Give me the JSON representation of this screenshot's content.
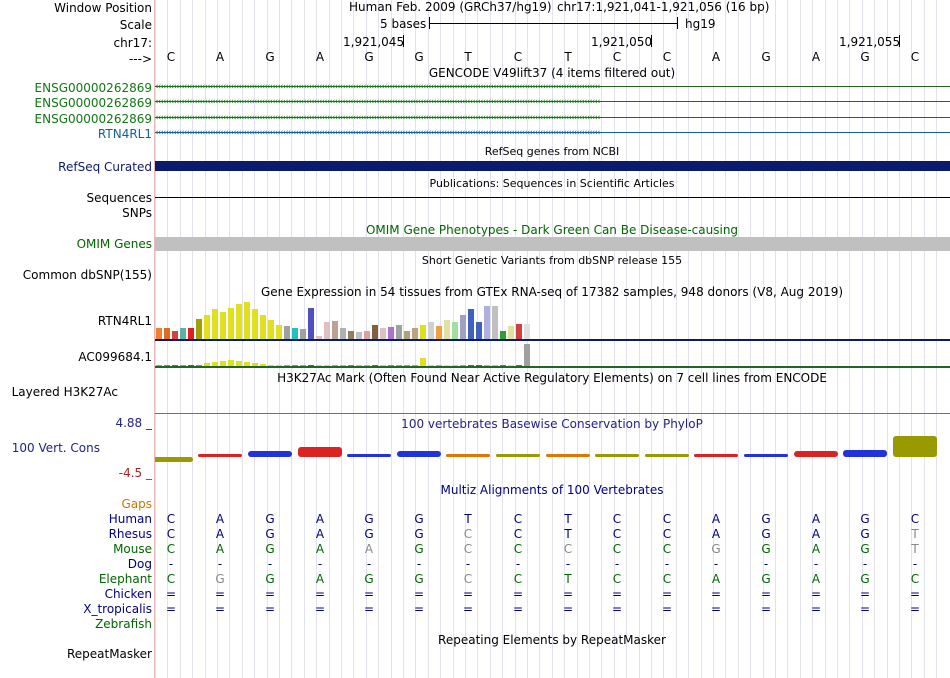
{
  "labels": {
    "window_position": "Window Position",
    "scale": "Scale",
    "chrom": "chr17:",
    "arrow": "--->",
    "gencode_tracks": [
      "ENSG00000262869",
      "ENSG00000262869",
      "ENSG00000262869",
      "RTN4RL1"
    ],
    "refseq": "RefSeq Curated",
    "sequences": "Sequences",
    "snps": "SNPs",
    "omim": "OMIM Genes",
    "dbsnp": "Common dbSNP(155)",
    "gtex_rtn": "RTN4RL1",
    "gtex_ac": "AC099684.1",
    "h3k27ac": "Layered H3K27Ac",
    "cons_max": "4.88 _",
    "cons": "100 Vert. Cons",
    "cons_min": "-4.5 _",
    "gaps": "Gaps",
    "species": [
      "Human",
      "Rhesus",
      "Mouse",
      "Dog",
      "Elephant",
      "Chicken",
      "X_tropicalis",
      "Zebrafish"
    ],
    "repeatmasker": "RepeatMasker"
  },
  "header": {
    "assembly": "Human Feb. 2009 (GRCh37/hg19)",
    "position": "chr17:1,921,041-1,921,056 (16 bp)",
    "scale_text": "5 bases",
    "scale_db": "hg19",
    "ticks": [
      "1,921,045",
      "1,921,050",
      "1,921,055"
    ]
  },
  "sequence": [
    "C",
    "A",
    "G",
    "A",
    "G",
    "G",
    "T",
    "C",
    "T",
    "C",
    "C",
    "A",
    "G",
    "A",
    "G",
    "C"
  ],
  "titles": {
    "gencode": "GENCODE V49lift37 (4 items filtered out)",
    "refseq": "RefSeq genes from NCBI",
    "publications": "Publications: Sequences in Scientific Articles",
    "omim": "OMIM Gene Phenotypes - Dark Green Can Be Disease-causing",
    "dbsnp": "Short Genetic Variants from dbSNP release 155",
    "gtex": "Gene Expression in 54 tissues from GTEx RNA-seq of 17382 samples, 948 donors (V8, Aug 2019)",
    "h3k27ac": "H3K27Ac Mark (Often Found Near Active Regulatory Elements) on 7 cell lines from ENCODE",
    "phylop": "100 vertebrates Basewise Conservation by PhyloP",
    "multiz": "Multiz Alignments of 100 Vertebrates",
    "repeatmasker": "Repeating Elements by RepeatMasker"
  },
  "alignment": {
    "Human": [
      "C",
      "A",
      "G",
      "A",
      "G",
      "G",
      "T",
      "C",
      "T",
      "C",
      "C",
      "A",
      "G",
      "A",
      "G",
      "C"
    ],
    "Rhesus": [
      "C",
      "A",
      "G",
      "A",
      "G",
      "G",
      "C",
      "C",
      "T",
      "C",
      "C",
      "A",
      "G",
      "A",
      "G",
      "T"
    ],
    "Mouse": [
      "C",
      "A",
      "G",
      "A",
      "A",
      "G",
      "C",
      "C",
      "C",
      "C",
      "C",
      "G",
      "G",
      "A",
      "G",
      "T"
    ],
    "Dog": [
      "-",
      "-",
      "-",
      "-",
      "-",
      "-",
      "-",
      "-",
      "-",
      "-",
      "-",
      "-",
      "-",
      "-",
      "-",
      "-"
    ],
    "Elephant": [
      "C",
      "G",
      "G",
      "A",
      "G",
      "G",
      "C",
      "C",
      "T",
      "C",
      "C",
      "A",
      "G",
      "A",
      "G",
      "C"
    ],
    "Chicken": [
      "=",
      "=",
      "=",
      "=",
      "=",
      "=",
      "=",
      "=",
      "=",
      "=",
      "=",
      "=",
      "=",
      "=",
      "=",
      "="
    ],
    "X_tropicalis": [
      "=",
      "=",
      "=",
      "=",
      "=",
      "=",
      "=",
      "=",
      "=",
      "=",
      "=",
      "=",
      "=",
      "=",
      "=",
      "="
    ],
    "Zebrafish": [
      "",
      "",
      "",
      "",
      "",
      "",
      "",
      "",
      "",
      "",
      "",
      "",
      "",
      "",
      "",
      ""
    ]
  },
  "phylop_scores": [
    -0.9,
    0.4,
    1.0,
    1.6,
    0.4,
    1.0,
    0.0,
    0.5,
    0.4,
    0.4,
    0.0,
    0.4,
    0.4,
    1.0,
    1.1,
    3.5
  ],
  "gtex_rtn4rl1_colors": [
    "#f08030",
    "#e06a20",
    "#d84040",
    "#60b0a0",
    "#e02020",
    "#a0a000",
    "#e0e020",
    "#e0e020",
    "#e0e020",
    "#e0e020",
    "#e0e020",
    "#e0e020",
    "#e0e020",
    "#e0e020",
    "#e0e020",
    "#e0e020",
    "#a0a0a0",
    "#20c0c0",
    "#a0a0a0",
    "#5050c0",
    "#e0c0c0",
    "#e0c0c0",
    "#c0a090",
    "#b0b0b0",
    "#908060",
    "#c0c0c0",
    "#e0a0a0",
    "#806040",
    "#e0c0c0",
    "#b070d0",
    "#a0a0a0",
    "#b0a080",
    "#c0a080",
    "#e0e020",
    "#d0d0d0",
    "#f0a040",
    "#e0e0a0",
    "#a0e0a0",
    "#a0a0c0",
    "#4060c0",
    "#4060c0",
    "#b0b0e0",
    "#c0c0c0",
    "#30a030",
    "#e0e0a0",
    "#d04040",
    "#e0e0e0"
  ],
  "gtex_rtn4rl1_values": [
    0.3,
    0.3,
    0.22,
    0.28,
    0.3,
    0.52,
    0.62,
    0.78,
    0.72,
    0.82,
    0.92,
    0.97,
    0.78,
    0.62,
    0.5,
    0.38,
    0.35,
    0.28,
    0.25,
    0.82,
    0.08,
    0.45,
    0.48,
    0.3,
    0.22,
    0.18,
    0.22,
    0.38,
    0.28,
    0.32,
    0.38,
    0.22,
    0.28,
    0.38,
    0.45,
    0.35,
    0.5,
    0.45,
    0.62,
    0.8,
    0.45,
    0.88,
    0.88,
    0.22,
    0.35,
    0.4,
    0.4
  ],
  "gtex_ac_values": [
    0.02,
    0.02,
    0.02,
    0.03,
    0.02,
    0.02,
    0.12,
    0.18,
    0.22,
    0.25,
    0.22,
    0.18,
    0.12,
    0.08,
    0.05,
    0.04,
    0.03,
    0.02,
    0.02,
    0.04,
    0.02,
    0.02,
    0.03,
    0.02,
    0.02,
    0.02,
    0.02,
    0.02,
    0.02,
    0.02,
    0.02,
    0.02,
    0.02,
    0.35,
    0.02,
    0.02,
    0.02,
    0.02,
    0.02,
    0.02,
    0.02,
    0.02,
    0.02,
    0.02,
    0.02,
    0.02,
    1.0
  ],
  "colors": {
    "gencode": "#117711",
    "rtn4rl1": "#1060a0",
    "refseq_bar": "#0a1a6e",
    "refseq_label": "#0a1a6e",
    "omim_bar": "#c0c0c0",
    "omim_label": "#006600",
    "phylop_label": "#222288",
    "cons_max": "#222288",
    "cons_min": "#aa2222",
    "gaps": "#cc7700",
    "human": "#000080",
    "rhesus": "#000080",
    "mouse": "#006600",
    "dog": "#000080",
    "elephant": "#006600",
    "chicken": "#000080",
    "x_tropicalis": "#000080",
    "zebrafish": "#006600",
    "mismatch": "#888888"
  }
}
